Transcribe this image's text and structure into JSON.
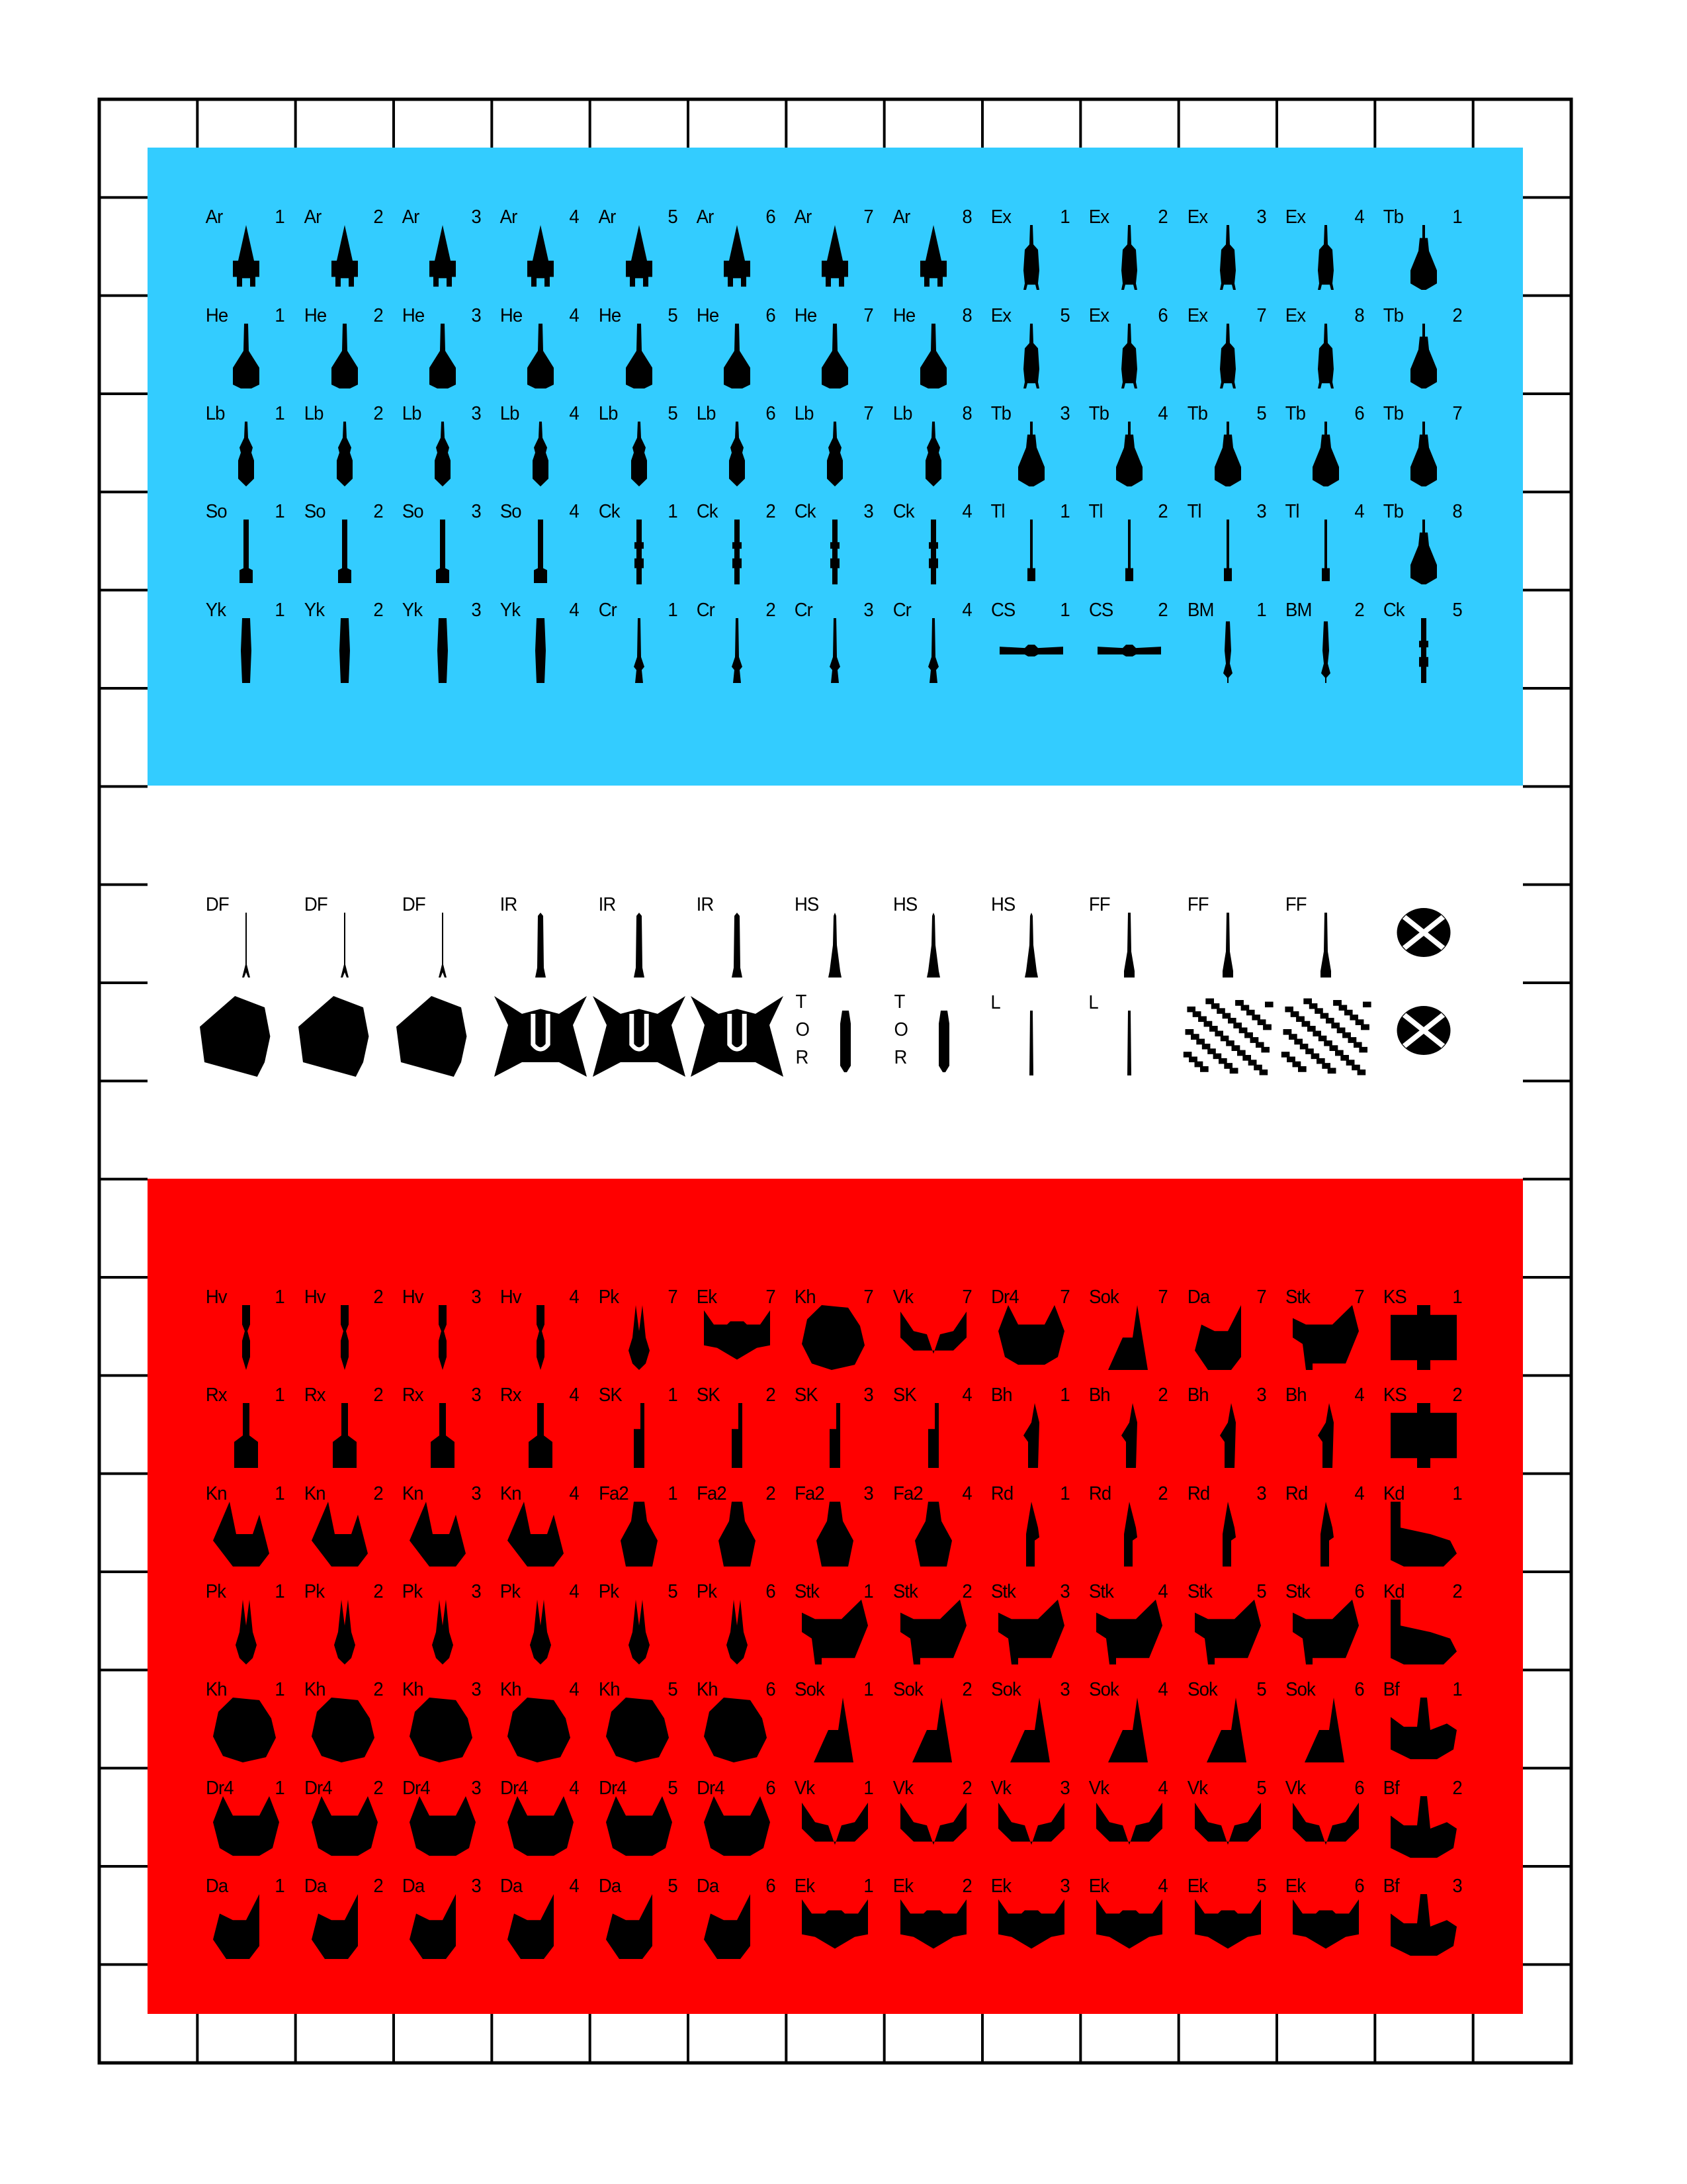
{
  "colors": {
    "blue_panel": "#33ccff",
    "red_panel": "#ff0000",
    "ink": "#000000",
    "paper": "#ffffff"
  },
  "blue": {
    "rows": [
      [
        {
          "n": "Ar",
          "v": "1",
          "icon": "dart"
        },
        {
          "n": "Ar",
          "v": "2",
          "icon": "dart"
        },
        {
          "n": "Ar",
          "v": "3",
          "icon": "dart"
        },
        {
          "n": "Ar",
          "v": "4",
          "icon": "dart"
        },
        {
          "n": "Ar",
          "v": "5",
          "icon": "dart"
        },
        {
          "n": "Ar",
          "v": "6",
          "icon": "dart"
        },
        {
          "n": "Ar",
          "v": "7",
          "icon": "dart"
        },
        {
          "n": "Ar",
          "v": "8",
          "icon": "dart"
        },
        {
          "n": "Ex",
          "v": "1",
          "icon": "ex"
        },
        {
          "n": "Ex",
          "v": "2",
          "icon": "ex"
        },
        {
          "n": "Ex",
          "v": "3",
          "icon": "ex"
        },
        {
          "n": "Ex",
          "v": "4",
          "icon": "ex"
        },
        {
          "n": "Tb",
          "v": "1",
          "icon": "tb"
        }
      ],
      [
        {
          "n": "He",
          "v": "1",
          "icon": "he"
        },
        {
          "n": "He",
          "v": "2",
          "icon": "he"
        },
        {
          "n": "He",
          "v": "3",
          "icon": "he"
        },
        {
          "n": "He",
          "v": "4",
          "icon": "he"
        },
        {
          "n": "He",
          "v": "5",
          "icon": "he"
        },
        {
          "n": "He",
          "v": "6",
          "icon": "he"
        },
        {
          "n": "He",
          "v": "7",
          "icon": "he"
        },
        {
          "n": "He",
          "v": "8",
          "icon": "he"
        },
        {
          "n": "Ex",
          "v": "5",
          "icon": "ex"
        },
        {
          "n": "Ex",
          "v": "6",
          "icon": "ex"
        },
        {
          "n": "Ex",
          "v": "7",
          "icon": "ex"
        },
        {
          "n": "Ex",
          "v": "8",
          "icon": "ex"
        },
        {
          "n": "Tb",
          "v": "2",
          "icon": "tb"
        }
      ],
      [
        {
          "n": "Lb",
          "v": "1",
          "icon": "lb"
        },
        {
          "n": "Lb",
          "v": "2",
          "icon": "lb"
        },
        {
          "n": "Lb",
          "v": "3",
          "icon": "lb"
        },
        {
          "n": "Lb",
          "v": "4",
          "icon": "lb"
        },
        {
          "n": "Lb",
          "v": "5",
          "icon": "lb"
        },
        {
          "n": "Lb",
          "v": "6",
          "icon": "lb"
        },
        {
          "n": "Lb",
          "v": "7",
          "icon": "lb"
        },
        {
          "n": "Lb",
          "v": "8",
          "icon": "lb"
        },
        {
          "n": "Tb",
          "v": "3",
          "icon": "tb"
        },
        {
          "n": "Tb",
          "v": "4",
          "icon": "tb"
        },
        {
          "n": "Tb",
          "v": "5",
          "icon": "tb"
        },
        {
          "n": "Tb",
          "v": "6",
          "icon": "tb"
        },
        {
          "n": "Tb",
          "v": "7",
          "icon": "tb"
        }
      ],
      [
        {
          "n": "So",
          "v": "1",
          "icon": "rod"
        },
        {
          "n": "So",
          "v": "2",
          "icon": "rod"
        },
        {
          "n": "So",
          "v": "3",
          "icon": "rod"
        },
        {
          "n": "So",
          "v": "4",
          "icon": "rod"
        },
        {
          "n": "Ck",
          "v": "1",
          "icon": "ck"
        },
        {
          "n": "Ck",
          "v": "2",
          "icon": "ck"
        },
        {
          "n": "Ck",
          "v": "3",
          "icon": "ck"
        },
        {
          "n": "Ck",
          "v": "4",
          "icon": "ck"
        },
        {
          "n": "Tl",
          "v": "1",
          "icon": "tl"
        },
        {
          "n": "Tl",
          "v": "2",
          "icon": "tl"
        },
        {
          "n": "Tl",
          "v": "3",
          "icon": "tl"
        },
        {
          "n": "Tl",
          "v": "4",
          "icon": "tl"
        },
        {
          "n": "Tb",
          "v": "8",
          "icon": "tb"
        }
      ],
      [
        {
          "n": "Yk",
          "v": "1",
          "icon": "yk"
        },
        {
          "n": "Yk",
          "v": "2",
          "icon": "yk"
        },
        {
          "n": "Yk",
          "v": "3",
          "icon": "yk"
        },
        {
          "n": "Yk",
          "v": "4",
          "icon": "yk"
        },
        {
          "n": "Cr",
          "v": "1",
          "icon": "cr"
        },
        {
          "n": "Cr",
          "v": "2",
          "icon": "cr"
        },
        {
          "n": "Cr",
          "v": "3",
          "icon": "cr"
        },
        {
          "n": "Cr",
          "v": "4",
          "icon": "cr"
        },
        {
          "n": "CS",
          "v": "1",
          "icon": "cs"
        },
        {
          "n": "CS",
          "v": "2",
          "icon": "cs"
        },
        {
          "n": "BM",
          "v": "1",
          "icon": "bm"
        },
        {
          "n": "BM",
          "v": "2",
          "icon": "bm"
        },
        {
          "n": "Ck",
          "v": "5",
          "icon": "ck"
        }
      ]
    ]
  },
  "middle": {
    "rows": [
      [
        {
          "n": "DF",
          "icon": "df"
        },
        {
          "n": "DF",
          "icon": "df"
        },
        {
          "n": "DF",
          "icon": "df"
        },
        {
          "n": "IR",
          "icon": "ir"
        },
        {
          "n": "IR",
          "icon": "ir"
        },
        {
          "n": "IR",
          "icon": "ir"
        },
        {
          "n": "HS",
          "icon": "hs"
        },
        {
          "n": "HS",
          "icon": "hs"
        },
        {
          "n": "HS",
          "icon": "hs"
        },
        {
          "n": "FF",
          "icon": "ff"
        },
        {
          "n": "FF",
          "icon": "ff"
        },
        {
          "n": "FF",
          "icon": "ff"
        },
        {
          "icon": "mine"
        }
      ],
      [
        {
          "icon": "asteroid"
        },
        {
          "icon": "asteroid"
        },
        {
          "icon": "asteroid"
        },
        {
          "icon": "station"
        },
        {
          "icon": "station"
        },
        {
          "icon": "station"
        },
        {
          "n": "TOR",
          "icon": "tor",
          "vertical": true
        },
        {
          "n": "TOR",
          "icon": "tor",
          "vertical": true
        },
        {
          "n": "L",
          "icon": "lance"
        },
        {
          "n": "L",
          "icon": "lance"
        },
        {
          "icon": "debris"
        },
        {
          "icon": "debris"
        },
        {
          "icon": "mine"
        }
      ]
    ]
  },
  "red": {
    "rows": [
      [
        {
          "n": "Hv",
          "v": "1",
          "icon": "hv"
        },
        {
          "n": "Hv",
          "v": "2",
          "icon": "hv"
        },
        {
          "n": "Hv",
          "v": "3",
          "icon": "hv"
        },
        {
          "n": "Hv",
          "v": "4",
          "icon": "hv"
        },
        {
          "n": "Pk",
          "v": "7",
          "icon": "pk"
        },
        {
          "n": "Ek",
          "v": "7",
          "icon": "ek"
        },
        {
          "n": "Kh",
          "v": "7",
          "icon": "kh"
        },
        {
          "n": "Vk",
          "v": "7",
          "icon": "vk"
        },
        {
          "n": "Dr4",
          "v": "7",
          "icon": "dr4"
        },
        {
          "n": "Sok",
          "v": "7",
          "icon": "sok"
        },
        {
          "n": "Da",
          "v": "7",
          "icon": "da"
        },
        {
          "n": "Stk",
          "v": "7",
          "icon": "stk"
        },
        {
          "n": "KS",
          "v": "1",
          "icon": "ks"
        }
      ],
      [
        {
          "n": "Rx",
          "v": "1",
          "icon": "rx"
        },
        {
          "n": "Rx",
          "v": "2",
          "icon": "rx"
        },
        {
          "n": "Rx",
          "v": "3",
          "icon": "rx"
        },
        {
          "n": "Rx",
          "v": "4",
          "icon": "rx"
        },
        {
          "n": "SK",
          "v": "1",
          "icon": "sk"
        },
        {
          "n": "SK",
          "v": "2",
          "icon": "sk"
        },
        {
          "n": "SK",
          "v": "3",
          "icon": "sk"
        },
        {
          "n": "SK",
          "v": "4",
          "icon": "sk"
        },
        {
          "n": "Bh",
          "v": "1",
          "icon": "bh"
        },
        {
          "n": "Bh",
          "v": "2",
          "icon": "bh"
        },
        {
          "n": "Bh",
          "v": "3",
          "icon": "bh"
        },
        {
          "n": "Bh",
          "v": "4",
          "icon": "bh"
        },
        {
          "n": "KS",
          "v": "2",
          "icon": "ks"
        }
      ],
      [
        {
          "n": "Kn",
          "v": "1",
          "icon": "kn"
        },
        {
          "n": "Kn",
          "v": "2",
          "icon": "kn"
        },
        {
          "n": "Kn",
          "v": "3",
          "icon": "kn"
        },
        {
          "n": "Kn",
          "v": "4",
          "icon": "kn"
        },
        {
          "n": "Fa2",
          "v": "1",
          "icon": "fa2"
        },
        {
          "n": "Fa2",
          "v": "2",
          "icon": "fa2"
        },
        {
          "n": "Fa2",
          "v": "3",
          "icon": "fa2"
        },
        {
          "n": "Fa2",
          "v": "4",
          "icon": "fa2"
        },
        {
          "n": "Rd",
          "v": "1",
          "icon": "rd"
        },
        {
          "n": "Rd",
          "v": "2",
          "icon": "rd"
        },
        {
          "n": "Rd",
          "v": "3",
          "icon": "rd"
        },
        {
          "n": "Rd",
          "v": "4",
          "icon": "rd"
        },
        {
          "n": "Kd",
          "v": "1",
          "icon": "kd"
        }
      ],
      [
        {
          "n": "Pk",
          "v": "1",
          "icon": "pk"
        },
        {
          "n": "Pk",
          "v": "2",
          "icon": "pk"
        },
        {
          "n": "Pk",
          "v": "3",
          "icon": "pk"
        },
        {
          "n": "Pk",
          "v": "4",
          "icon": "pk"
        },
        {
          "n": "Pk",
          "v": "5",
          "icon": "pk"
        },
        {
          "n": "Pk",
          "v": "6",
          "icon": "pk"
        },
        {
          "n": "Stk",
          "v": "1",
          "icon": "stk"
        },
        {
          "n": "Stk",
          "v": "2",
          "icon": "stk"
        },
        {
          "n": "Stk",
          "v": "3",
          "icon": "stk"
        },
        {
          "n": "Stk",
          "v": "4",
          "icon": "stk"
        },
        {
          "n": "Stk",
          "v": "5",
          "icon": "stk"
        },
        {
          "n": "Stk",
          "v": "6",
          "icon": "stk"
        },
        {
          "n": "Kd",
          "v": "2",
          "icon": "kd"
        }
      ],
      [
        {
          "n": "Kh",
          "v": "1",
          "icon": "kh"
        },
        {
          "n": "Kh",
          "v": "2",
          "icon": "kh"
        },
        {
          "n": "Kh",
          "v": "3",
          "icon": "kh"
        },
        {
          "n": "Kh",
          "v": "4",
          "icon": "kh"
        },
        {
          "n": "Kh",
          "v": "5",
          "icon": "kh"
        },
        {
          "n": "Kh",
          "v": "6",
          "icon": "kh"
        },
        {
          "n": "Sok",
          "v": "1",
          "icon": "sok"
        },
        {
          "n": "Sok",
          "v": "2",
          "icon": "sok"
        },
        {
          "n": "Sok",
          "v": "3",
          "icon": "sok"
        },
        {
          "n": "Sok",
          "v": "4",
          "icon": "sok"
        },
        {
          "n": "Sok",
          "v": "5",
          "icon": "sok"
        },
        {
          "n": "Sok",
          "v": "6",
          "icon": "sok"
        },
        {
          "n": "Bf",
          "v": "1",
          "icon": "bf"
        }
      ],
      [
        {
          "n": "Dr4",
          "v": "1",
          "icon": "dr4"
        },
        {
          "n": "Dr4",
          "v": "2",
          "icon": "dr4"
        },
        {
          "n": "Dr4",
          "v": "3",
          "icon": "dr4"
        },
        {
          "n": "Dr4",
          "v": "4",
          "icon": "dr4"
        },
        {
          "n": "Dr4",
          "v": "5",
          "icon": "dr4"
        },
        {
          "n": "Dr4",
          "v": "6",
          "icon": "dr4"
        },
        {
          "n": "Vk",
          "v": "1",
          "icon": "vk"
        },
        {
          "n": "Vk",
          "v": "2",
          "icon": "vk"
        },
        {
          "n": "Vk",
          "v": "3",
          "icon": "vk"
        },
        {
          "n": "Vk",
          "v": "4",
          "icon": "vk"
        },
        {
          "n": "Vk",
          "v": "5",
          "icon": "vk"
        },
        {
          "n": "Vk",
          "v": "6",
          "icon": "vk"
        },
        {
          "n": "Bf",
          "v": "2",
          "icon": "bf"
        }
      ],
      [
        {
          "n": "Da",
          "v": "1",
          "icon": "da"
        },
        {
          "n": "Da",
          "v": "2",
          "icon": "da"
        },
        {
          "n": "Da",
          "v": "3",
          "icon": "da"
        },
        {
          "n": "Da",
          "v": "4",
          "icon": "da"
        },
        {
          "n": "Da",
          "v": "5",
          "icon": "da"
        },
        {
          "n": "Da",
          "v": "6",
          "icon": "da"
        },
        {
          "n": "Ek",
          "v": "1",
          "icon": "ek"
        },
        {
          "n": "Ek",
          "v": "2",
          "icon": "ek"
        },
        {
          "n": "Ek",
          "v": "3",
          "icon": "ek"
        },
        {
          "n": "Ek",
          "v": "4",
          "icon": "ek"
        },
        {
          "n": "Ek",
          "v": "5",
          "icon": "ek"
        },
        {
          "n": "Ek",
          "v": "6",
          "icon": "ek"
        },
        {
          "n": "Bf",
          "v": "3",
          "icon": "bf"
        }
      ]
    ]
  }
}
